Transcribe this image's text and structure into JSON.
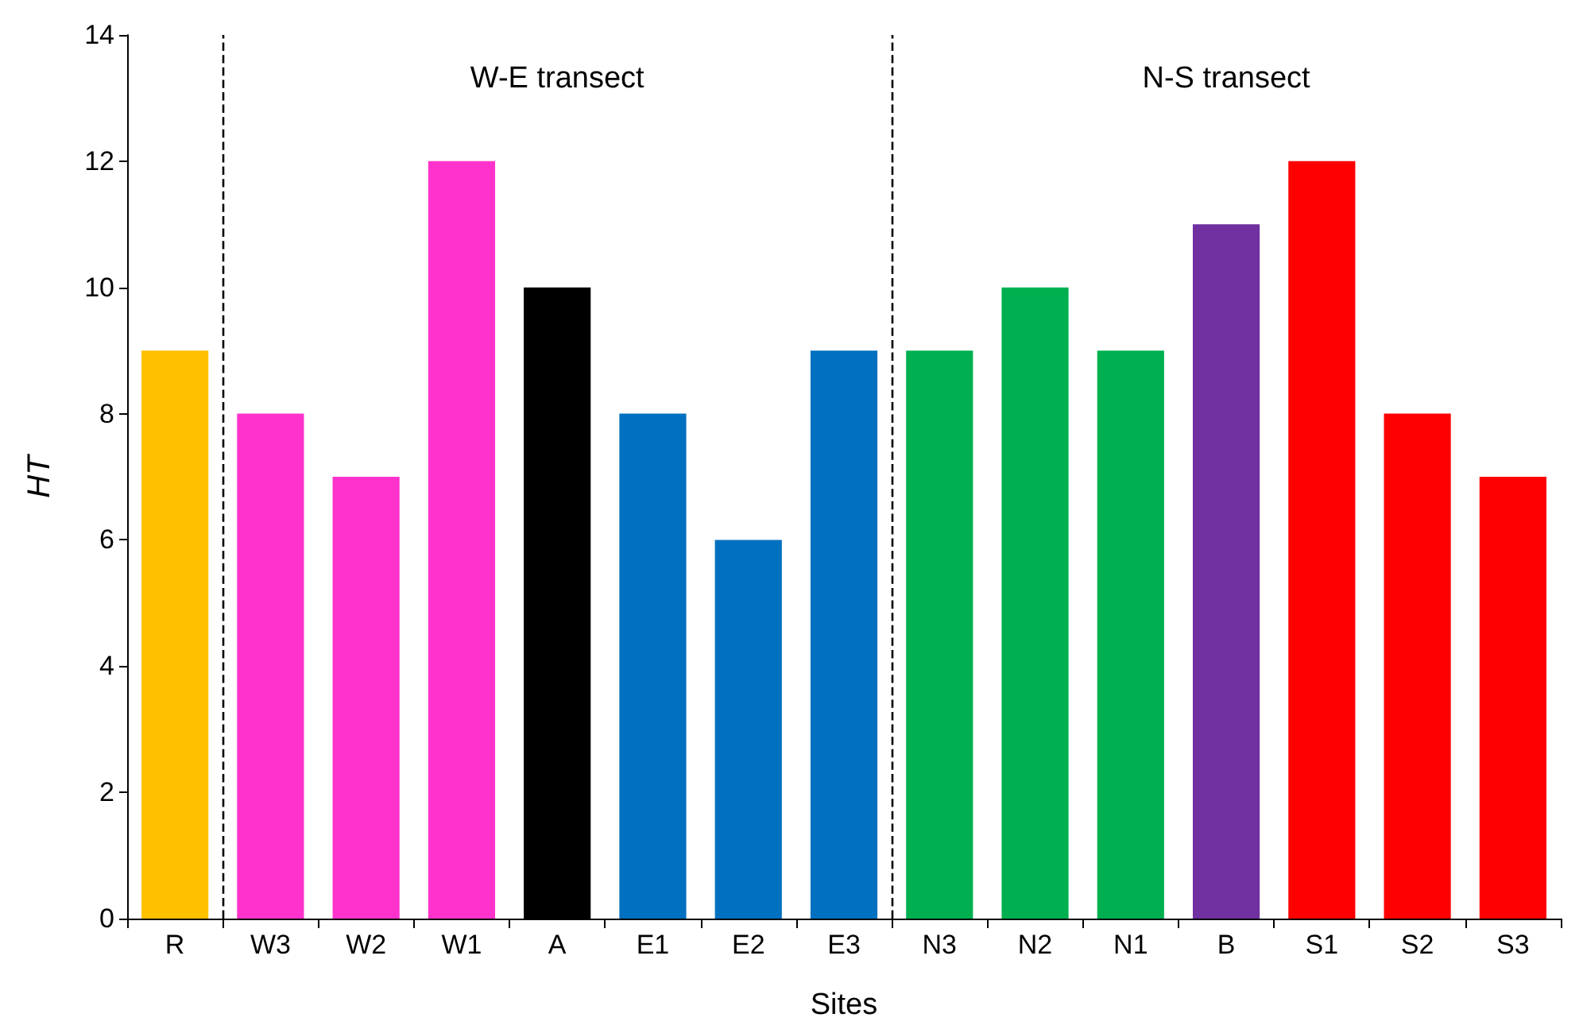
{
  "chart_data": {
    "type": "bar",
    "xlabel": "Sites",
    "ylabel": "HT",
    "categories": [
      "R",
      "W3",
      "W2",
      "W1",
      "A",
      "E1",
      "E2",
      "E3",
      "N3",
      "N2",
      "N1",
      "B",
      "S1",
      "S2",
      "S3"
    ],
    "values": [
      9,
      8,
      7,
      12,
      10,
      8,
      6,
      9,
      9,
      10,
      9,
      11,
      12,
      8,
      7
    ],
    "colors": [
      "#ffc000",
      "#ff33cc",
      "#ff33cc",
      "#ff33cc",
      "#000000",
      "#0070c0",
      "#0070c0",
      "#0070c0",
      "#00b050",
      "#00b050",
      "#00b050",
      "#7030a0",
      "#ff0000",
      "#ff0000",
      "#ff0000"
    ],
    "ylim": [
      0,
      14
    ],
    "yticks": [
      0,
      2,
      4,
      6,
      8,
      10,
      12,
      14
    ],
    "annotations": [
      "W-E transect",
      "N-S transect"
    ]
  }
}
